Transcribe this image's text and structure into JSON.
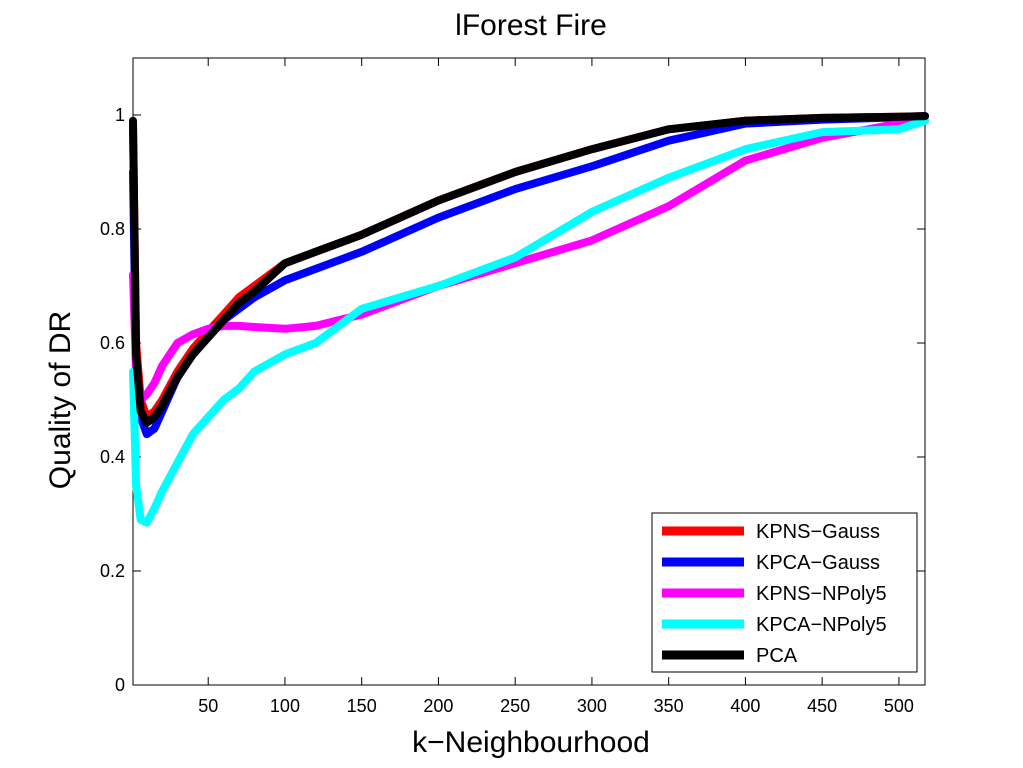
{
  "chart_data": {
    "type": "line",
    "title": "lForest Fire",
    "xlabel": "k−Neighbourhood",
    "ylabel": "Quality of DR",
    "xlim": [
      1,
      517
    ],
    "ylim": [
      0,
      1.1
    ],
    "xticks": [
      50,
      100,
      150,
      200,
      250,
      300,
      350,
      400,
      450,
      500
    ],
    "yticks": [
      0,
      0.2,
      0.4,
      0.6,
      0.8,
      1
    ],
    "ytick_labels": [
      "0",
      "0.2",
      "0.4",
      "0.6",
      "0.8",
      "1"
    ],
    "grid": false,
    "legend_position": "bottom-right",
    "series": [
      {
        "name": "KPNS−Gauss",
        "color": "#ff0000",
        "x": [
          1,
          3,
          6,
          10,
          15,
          20,
          30,
          40,
          50,
          60,
          70,
          80,
          100,
          120,
          150,
          200,
          250,
          300,
          350,
          400,
          450,
          500,
          517
        ],
        "y": [
          0.98,
          0.6,
          0.5,
          0.47,
          0.48,
          0.5,
          0.55,
          0.59,
          0.62,
          0.65,
          0.68,
          0.7,
          0.74,
          0.76,
          0.79,
          0.85,
          0.9,
          0.94,
          0.975,
          0.99,
          0.995,
          0.997,
          0.998
        ]
      },
      {
        "name": "KPCA−Gauss",
        "color": "#0000ff",
        "x": [
          1,
          3,
          6,
          10,
          15,
          20,
          30,
          40,
          50,
          60,
          70,
          80,
          100,
          120,
          150,
          200,
          250,
          300,
          350,
          400,
          450,
          500,
          517
        ],
        "y": [
          0.9,
          0.55,
          0.47,
          0.44,
          0.45,
          0.48,
          0.54,
          0.58,
          0.61,
          0.64,
          0.66,
          0.68,
          0.71,
          0.73,
          0.76,
          0.82,
          0.87,
          0.91,
          0.955,
          0.985,
          0.992,
          0.996,
          0.998
        ]
      },
      {
        "name": "KPNS−NPoly5",
        "color": "#ff00ff",
        "x": [
          1,
          3,
          6,
          10,
          15,
          20,
          30,
          40,
          50,
          60,
          70,
          80,
          100,
          120,
          150,
          200,
          250,
          300,
          350,
          400,
          450,
          500,
          517
        ],
        "y": [
          0.72,
          0.55,
          0.5,
          0.51,
          0.53,
          0.56,
          0.6,
          0.615,
          0.625,
          0.63,
          0.63,
          0.628,
          0.625,
          0.63,
          0.65,
          0.7,
          0.74,
          0.78,
          0.84,
          0.92,
          0.96,
          0.985,
          0.99
        ]
      },
      {
        "name": "KPCA−NPoly5",
        "color": "#00ffff",
        "x": [
          1,
          3,
          6,
          10,
          15,
          20,
          30,
          40,
          50,
          60,
          70,
          80,
          100,
          120,
          150,
          200,
          250,
          300,
          350,
          400,
          450,
          500,
          517
        ],
        "y": [
          0.55,
          0.35,
          0.29,
          0.285,
          0.31,
          0.34,
          0.39,
          0.44,
          0.47,
          0.5,
          0.52,
          0.55,
          0.58,
          0.6,
          0.66,
          0.7,
          0.75,
          0.83,
          0.89,
          0.94,
          0.97,
          0.975,
          0.99
        ]
      },
      {
        "name": "PCA",
        "color": "#000000",
        "x": [
          1,
          3,
          6,
          10,
          15,
          20,
          30,
          40,
          50,
          60,
          70,
          80,
          100,
          120,
          150,
          200,
          250,
          300,
          350,
          400,
          450,
          500,
          517
        ],
        "y": [
          0.99,
          0.58,
          0.48,
          0.46,
          0.47,
          0.49,
          0.54,
          0.58,
          0.61,
          0.64,
          0.67,
          0.69,
          0.74,
          0.76,
          0.79,
          0.85,
          0.9,
          0.94,
          0.975,
          0.99,
          0.995,
          0.997,
          0.998
        ]
      }
    ]
  }
}
